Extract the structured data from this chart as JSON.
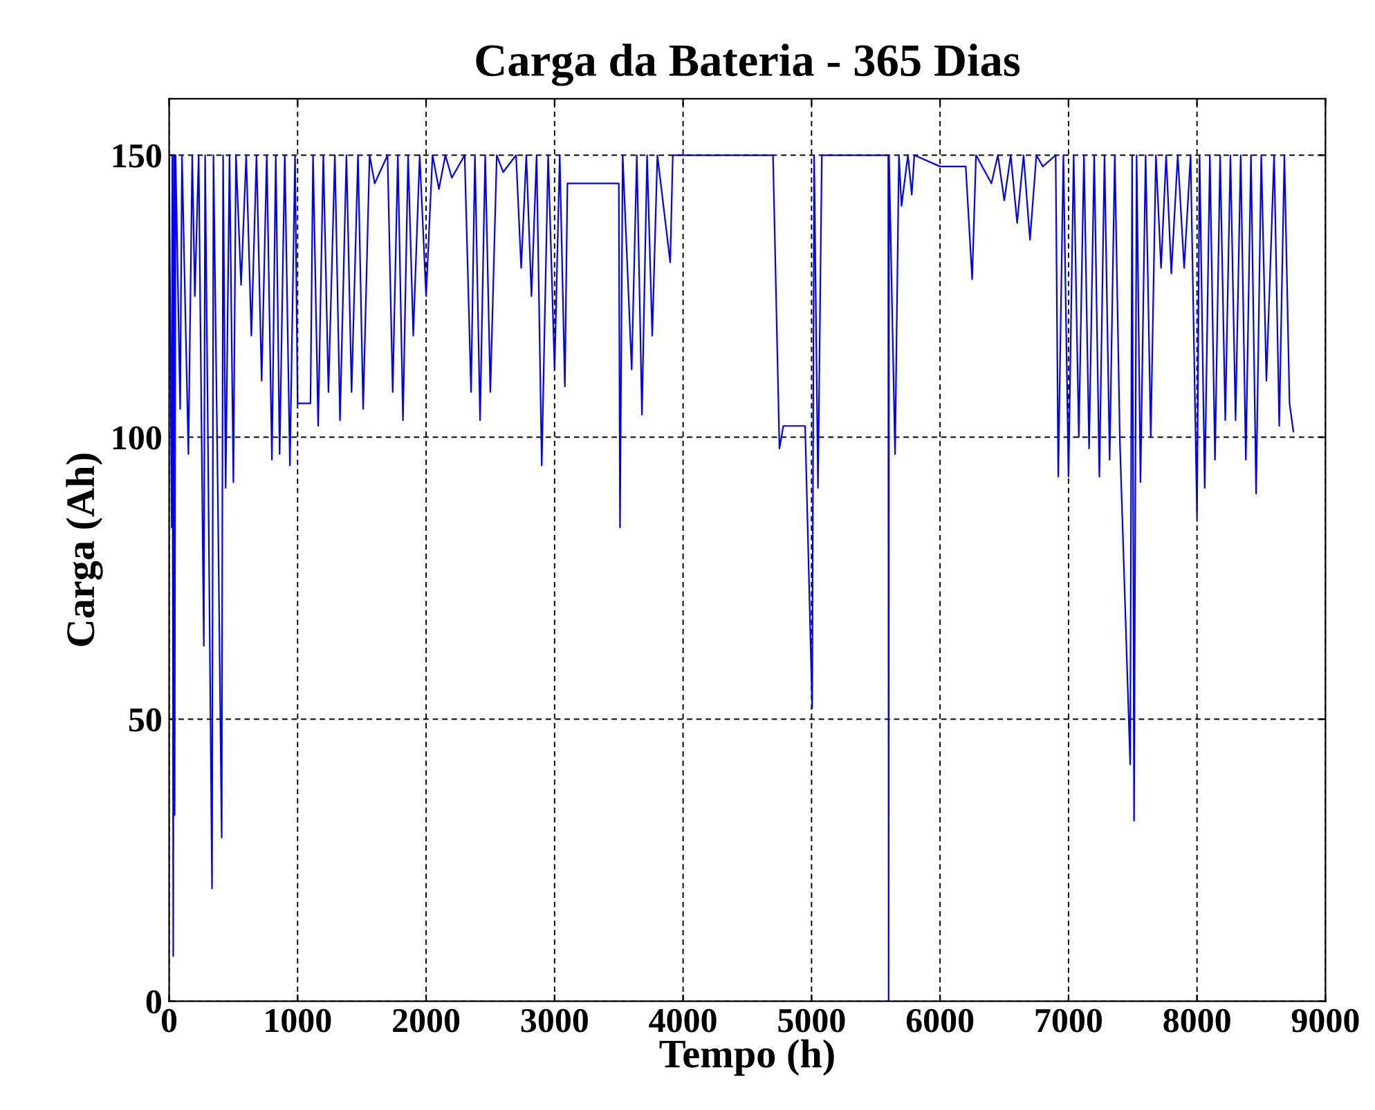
{
  "chart_data": {
    "type": "line",
    "title": "Carga da Bateria - 365 Dias",
    "xlabel": "Tempo (h)",
    "ylabel": "Carga (Ah)",
    "xlim": [
      0,
      9000
    ],
    "xticks": [
      0,
      1000,
      2000,
      3000,
      4000,
      5000,
      6000,
      7000,
      8000,
      9000
    ],
    "ylim": [
      0,
      160
    ],
    "yticks": [
      0,
      50,
      100,
      150
    ],
    "grid": true,
    "marker": "none",
    "line_style": "solid",
    "series": [
      {
        "color": "#0000ff",
        "x": [
          0,
          20,
          25,
          32,
          38,
          43,
          50,
          86,
          100,
          150,
          180,
          200,
          230,
          270,
          280,
          300,
          334,
          345,
          380,
          409,
          420,
          440,
          470,
          500,
          520,
          560,
          600,
          640,
          680,
          720,
          760,
          800,
          830,
          860,
          900,
          940,
          980,
          1000,
          1100,
          1120,
          1160,
          1200,
          1240,
          1290,
          1330,
          1380,
          1420,
          1470,
          1510,
          1560,
          1600,
          1700,
          1740,
          1780,
          1820,
          1860,
          1900,
          1950,
          2000,
          2050,
          2100,
          2150,
          2200,
          2300,
          2350,
          2380,
          2420,
          2460,
          2500,
          2550,
          2600,
          2700,
          2740,
          2780,
          2820,
          2860,
          2900,
          2950,
          3000,
          3040,
          3080,
          3100,
          3500,
          3509,
          3530,
          3600,
          3640,
          3680,
          3720,
          3760,
          3800,
          3900,
          3920,
          4000,
          4700,
          4750,
          4780,
          4950,
          5005,
          5020,
          5050,
          5080,
          5597,
          5600,
          5603,
          5650,
          5680,
          5700,
          5750,
          5780,
          5800,
          6000,
          6200,
          6250,
          6280,
          6400,
          6450,
          6500,
          6550,
          6600,
          6650,
          6700,
          6750,
          6800,
          6900,
          6920,
          6960,
          7000,
          7040,
          7080,
          7120,
          7160,
          7200,
          7240,
          7280,
          7320,
          7360,
          7400,
          7480,
          7495,
          7510,
          7530,
          7560,
          7600,
          7640,
          7680,
          7720,
          7760,
          7800,
          7850,
          7900,
          7950,
          8000,
          8020,
          8060,
          8100,
          8140,
          8180,
          8220,
          8260,
          8300,
          8340,
          8380,
          8420,
          8460,
          8500,
          8540,
          8600,
          8640,
          8680,
          8720,
          8750
        ],
        "values": [
          150,
          84,
          150,
          8,
          150,
          33,
          150,
          105,
          150,
          97,
          150,
          125,
          150,
          63,
          150,
          105,
          20,
          150,
          88,
          29,
          150,
          91,
          150,
          92,
          150,
          127,
          150,
          118,
          150,
          110,
          150,
          96,
          150,
          97,
          150,
          95,
          150,
          106,
          106,
          150,
          102,
          150,
          108,
          150,
          103,
          150,
          108,
          150,
          105,
          150,
          145,
          150,
          108,
          150,
          103,
          150,
          118,
          150,
          125,
          150,
          144,
          150,
          146,
          150,
          108,
          150,
          103,
          150,
          108,
          150,
          147,
          150,
          130,
          150,
          125,
          150,
          95,
          150,
          112,
          150,
          109,
          145,
          145,
          84,
          150,
          112,
          150,
          104,
          150,
          118,
          150,
          131,
          150,
          150,
          150,
          98,
          102,
          102,
          52,
          150,
          91,
          150,
          150,
          0,
          150,
          97,
          150,
          141,
          150,
          143,
          150,
          148,
          148,
          128,
          150,
          145,
          150,
          142,
          150,
          138,
          150,
          135,
          150,
          148,
          150,
          93,
          150,
          93,
          150,
          100,
          150,
          98,
          150,
          93,
          150,
          96,
          150,
          99,
          42,
          150,
          32,
          150,
          92,
          150,
          100,
          150,
          130,
          150,
          129,
          150,
          130,
          150,
          86,
          150,
          91,
          150,
          96,
          150,
          103,
          150,
          103,
          150,
          96,
          150,
          90,
          150,
          110,
          150,
          102,
          150,
          106,
          101
        ]
      }
    ]
  }
}
